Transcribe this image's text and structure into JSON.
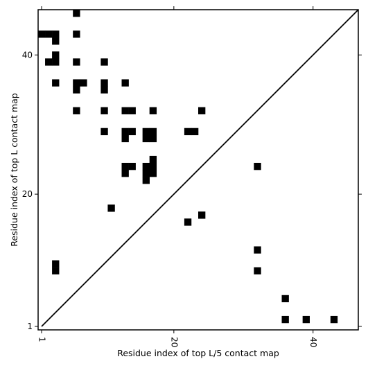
{
  "chart_data": {
    "type": "heatmap",
    "title": "",
    "xlabel": "Residue index of top L/5 contact map",
    "ylabel": "Residue index of top L contact map",
    "xlim": [
      0.5,
      46.5
    ],
    "ylim": [
      0.5,
      46.5
    ],
    "x_ticks": [
      {
        "value": 1,
        "label": "1"
      },
      {
        "value": 20,
        "label": "20"
      },
      {
        "value": 40,
        "label": "40"
      }
    ],
    "y_ticks": [
      {
        "value": 1,
        "label": "1"
      },
      {
        "value": 20,
        "label": "20"
      },
      {
        "value": 40,
        "label": "40"
      }
    ],
    "grid": false,
    "diagonal_line": true,
    "cell_color": "#000000",
    "upper_cells": [
      [
        6,
        46
      ],
      [
        1,
        43
      ],
      [
        2,
        43
      ],
      [
        3,
        43
      ],
      [
        6,
        43
      ],
      [
        3,
        42
      ],
      [
        3,
        40
      ],
      [
        2,
        39
      ],
      [
        3,
        39
      ],
      [
        6,
        39
      ],
      [
        10,
        39
      ],
      [
        3,
        36
      ],
      [
        6,
        36
      ],
      [
        7,
        36
      ],
      [
        10,
        36
      ],
      [
        13,
        36
      ],
      [
        6,
        35
      ],
      [
        10,
        35
      ],
      [
        6,
        32
      ],
      [
        10,
        32
      ],
      [
        13,
        32
      ],
      [
        14,
        32
      ],
      [
        17,
        32
      ],
      [
        24,
        32
      ],
      [
        10,
        29
      ],
      [
        13,
        29
      ],
      [
        14,
        29
      ],
      [
        16,
        29
      ],
      [
        17,
        29
      ],
      [
        22,
        29
      ],
      [
        23,
        29
      ],
      [
        13,
        28
      ],
      [
        16,
        28
      ],
      [
        17,
        28
      ],
      [
        17,
        25
      ],
      [
        13,
        24
      ],
      [
        14,
        24
      ],
      [
        16,
        24
      ],
      [
        17,
        24
      ],
      [
        13,
        23
      ],
      [
        16,
        23
      ],
      [
        17,
        23
      ],
      [
        16,
        22
      ],
      [
        11,
        18
      ]
    ],
    "lower_cells": [
      [
        32,
        24
      ],
      [
        24,
        17
      ],
      [
        22,
        16
      ],
      [
        32,
        12
      ],
      [
        3,
        10
      ],
      [
        32,
        9
      ],
      [
        3,
        9
      ],
      [
        36,
        5
      ],
      [
        36,
        2
      ],
      [
        39,
        2
      ],
      [
        43,
        2
      ]
    ]
  }
}
